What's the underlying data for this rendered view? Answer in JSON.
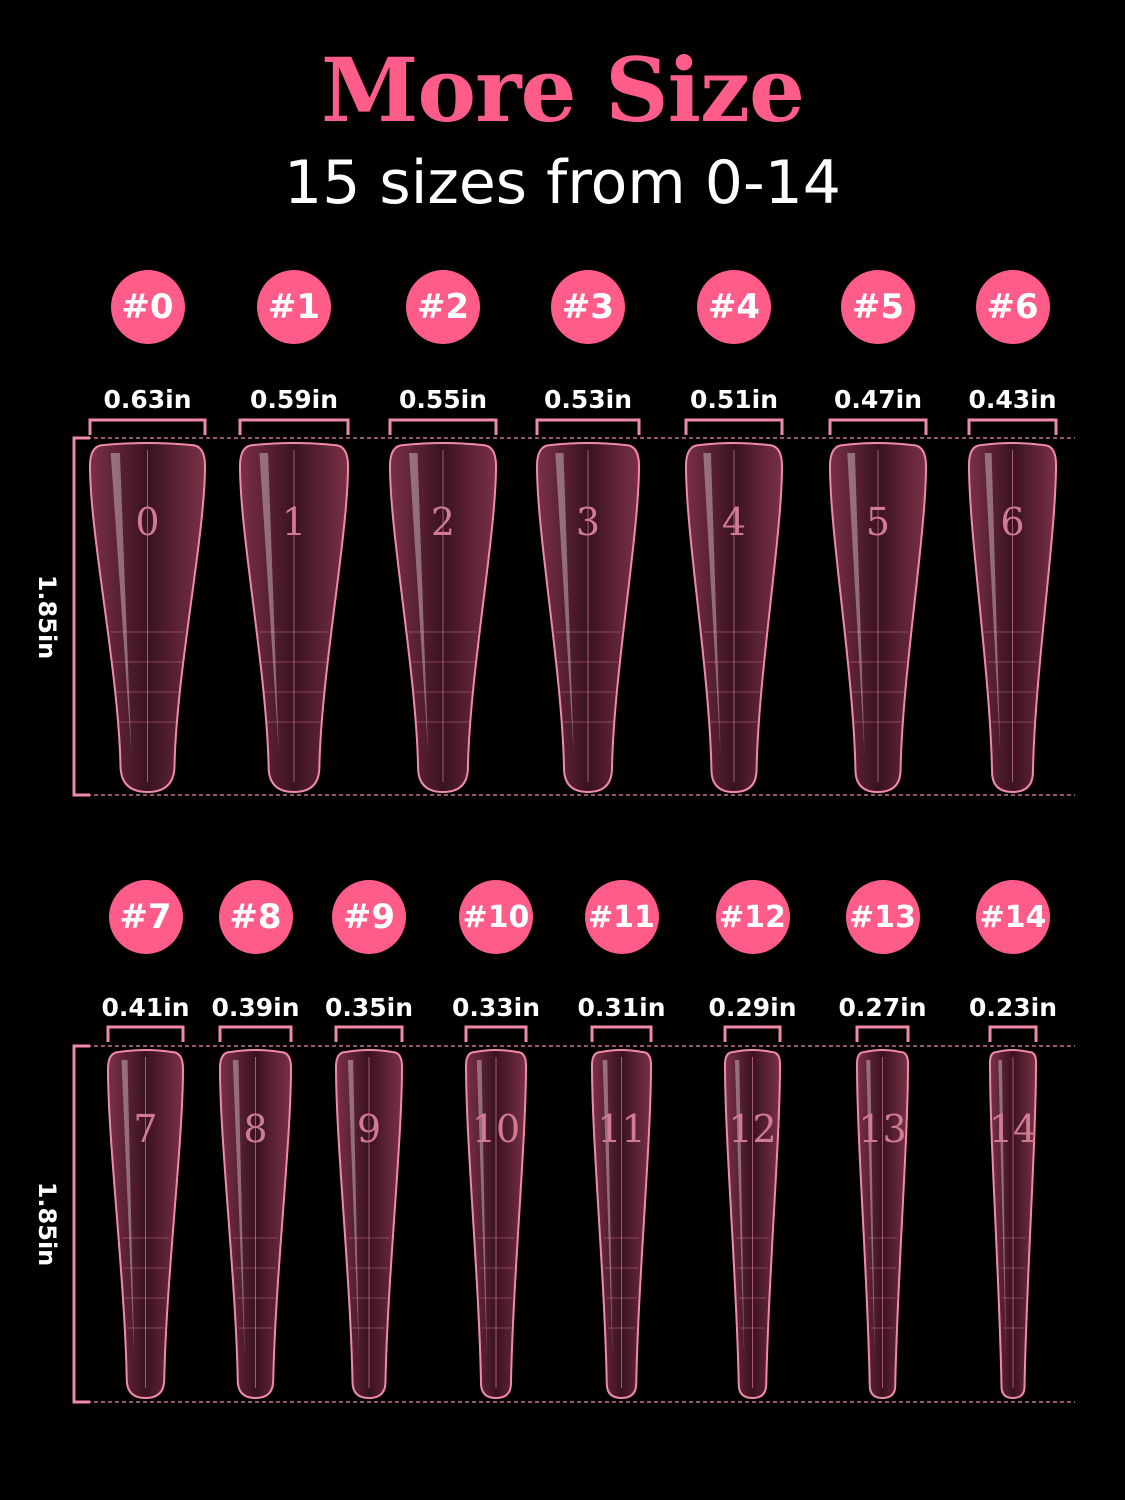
{
  "header": {
    "title": "More Size",
    "subtitle": "15 sizes from 0-14"
  },
  "colors": {
    "accent": "#ff5c8a",
    "nail": "#6b2a3f",
    "nail_edge": "#f08aa8",
    "background": "#000000"
  },
  "length_label": "1.85in",
  "rows": [
    {
      "length_label": "1.85in",
      "sizes": [
        {
          "badge": "#0",
          "number": "0",
          "width": "0.63in"
        },
        {
          "badge": "#1",
          "number": "1",
          "width": "0.59in"
        },
        {
          "badge": "#2",
          "number": "2",
          "width": "0.55in"
        },
        {
          "badge": "#3",
          "number": "3",
          "width": "0.53in"
        },
        {
          "badge": "#4",
          "number": "4",
          "width": "0.51in"
        },
        {
          "badge": "#5",
          "number": "5",
          "width": "0.47in"
        },
        {
          "badge": "#6",
          "number": "6",
          "width": "0.43in"
        }
      ]
    },
    {
      "length_label": "1.85in",
      "sizes": [
        {
          "badge": "#7",
          "number": "7",
          "width": "0.41in"
        },
        {
          "badge": "#8",
          "number": "8",
          "width": "0.39in"
        },
        {
          "badge": "#9",
          "number": "9",
          "width": "0.35in"
        },
        {
          "badge": "#10",
          "number": "10",
          "width": "0.33in"
        },
        {
          "badge": "#11",
          "number": "11",
          "width": "0.31in"
        },
        {
          "badge": "#12",
          "number": "12",
          "width": "0.29in"
        },
        {
          "badge": "#13",
          "number": "13",
          "width": "0.27in"
        },
        {
          "badge": "#14",
          "number": "14",
          "width": "0.23in"
        }
      ]
    }
  ]
}
